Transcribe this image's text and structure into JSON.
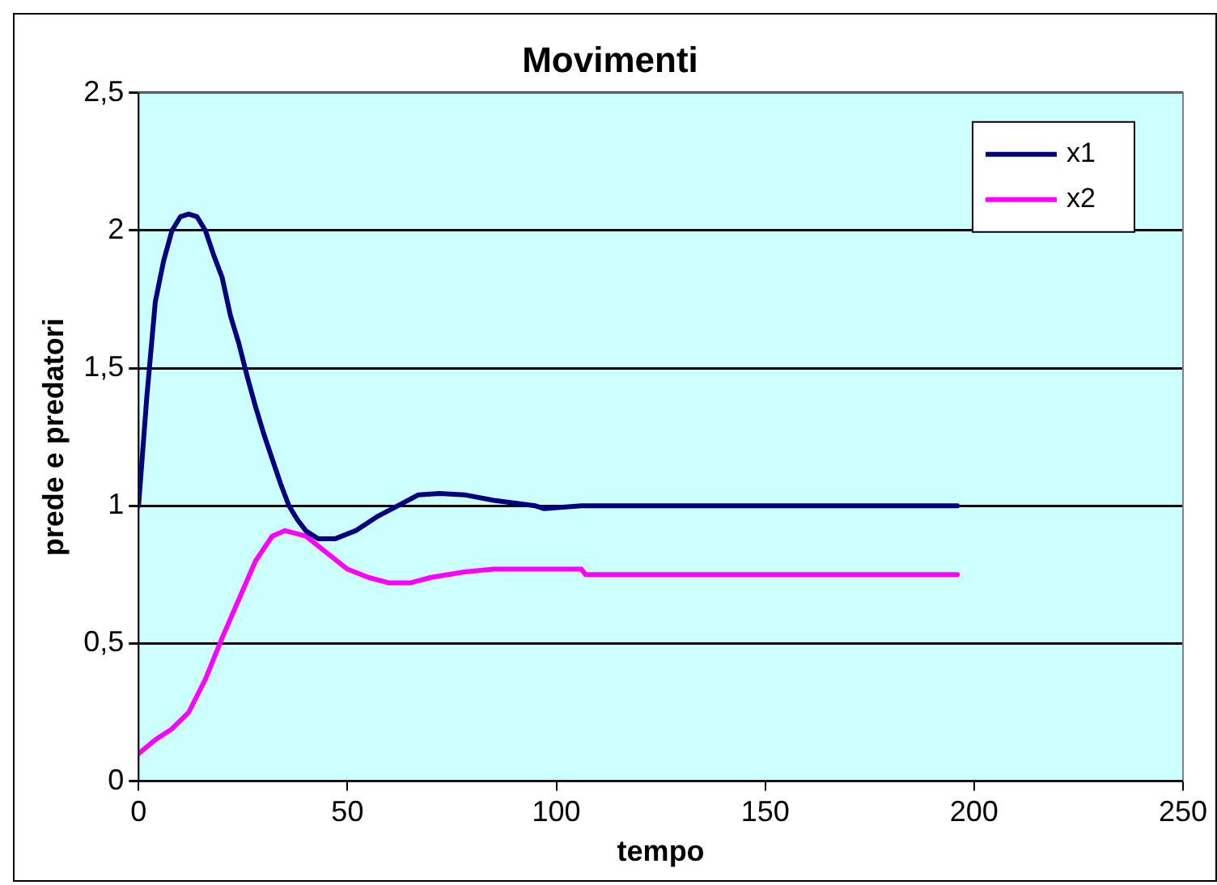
{
  "chart_data": {
    "type": "line",
    "title": "Movimenti",
    "xlabel": "tempo",
    "ylabel": "prede e predatori",
    "xlim": [
      0,
      250
    ],
    "xticks": [
      0,
      50,
      100,
      150,
      200,
      250
    ],
    "ylim": [
      0,
      2.5
    ],
    "yticks": [
      0,
      {
        "value": 0.5,
        "label": "0,5"
      },
      1,
      {
        "value": 1.5,
        "label": "1,5"
      },
      2,
      {
        "value": 2.5,
        "label": "2,5"
      }
    ],
    "grid": "y",
    "legend": "top right",
    "marker": "none",
    "line_style": "solid",
    "series": [
      {
        "name": "x1",
        "color": "#000080",
        "x": [
          0,
          2,
          4,
          6,
          8,
          10,
          12,
          14,
          16,
          18,
          20,
          22,
          24,
          26,
          28,
          30,
          32,
          34,
          36,
          38,
          40,
          43,
          47,
          52,
          57,
          62,
          67,
          72,
          78,
          85,
          95,
          97,
          106,
          196
        ],
        "values": [
          1.0,
          1.4,
          1.74,
          1.89,
          2.0,
          2.05,
          2.06,
          2.05,
          2.0,
          1.91,
          1.83,
          1.69,
          1.59,
          1.47,
          1.36,
          1.26,
          1.17,
          1.08,
          1.0,
          0.95,
          0.91,
          0.88,
          0.88,
          0.91,
          0.96,
          1.0,
          1.04,
          1.045,
          1.04,
          1.02,
          1.0,
          0.99,
          1.0,
          1.0
        ]
      },
      {
        "name": "x2",
        "color": "#ff00ff",
        "x": [
          0,
          4,
          8,
          12,
          16,
          20,
          24,
          28,
          32,
          35,
          40,
          45,
          50,
          55,
          60,
          65,
          70,
          78,
          85,
          106,
          107,
          196
        ],
        "values": [
          0.1,
          0.15,
          0.19,
          0.25,
          0.37,
          0.52,
          0.66,
          0.8,
          0.89,
          0.91,
          0.89,
          0.83,
          0.77,
          0.74,
          0.72,
          0.72,
          0.74,
          0.76,
          0.77,
          0.77,
          0.75,
          0.75
        ]
      }
    ]
  }
}
